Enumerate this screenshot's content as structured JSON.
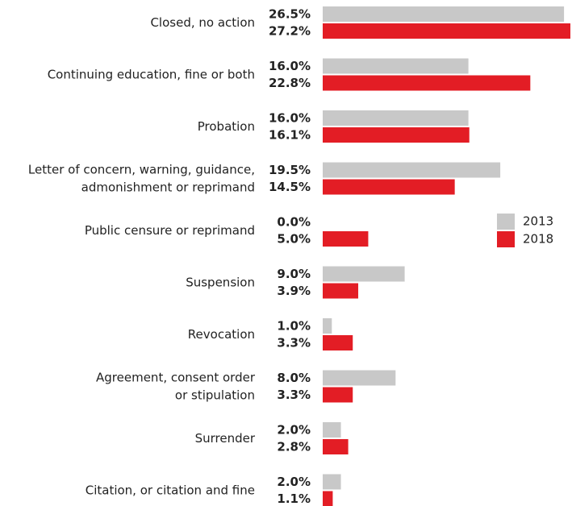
{
  "chart_data": {
    "type": "hbar",
    "categories": [
      "Closed, no action",
      "Continuing education, fine or both",
      "Probation",
      "Letter of concern, warning, guidance,\nadmonishment or reprimand",
      "Public censure or reprimand",
      "Suspension",
      "Revocation",
      "Agreement, consent order\nor stipulation",
      "Surrender",
      "Citation, or citation and fine"
    ],
    "series": [
      {
        "name": "2013",
        "color": "#c8c8c8",
        "values": [
          26.5,
          16.0,
          16.0,
          19.5,
          0.0,
          9.0,
          1.0,
          8.0,
          2.0,
          2.0
        ],
        "value_labels": [
          "26.5%",
          "16.0%",
          "16.0%",
          "19.5%",
          "0.0%",
          "9.0%",
          "1.0%",
          "8.0%",
          "2.0%",
          "2.0%"
        ]
      },
      {
        "name": "2018",
        "color": "#e31d25",
        "values": [
          27.2,
          22.8,
          16.1,
          14.5,
          5.0,
          3.9,
          3.3,
          3.3,
          2.8,
          1.1
        ],
        "value_labels": [
          "27.2%",
          "22.8%",
          "16.1%",
          "14.5%",
          "5.0%",
          "3.9%",
          "3.3%",
          "3.3%",
          "2.8%",
          "1.1%"
        ]
      }
    ],
    "legend": "right"
  }
}
